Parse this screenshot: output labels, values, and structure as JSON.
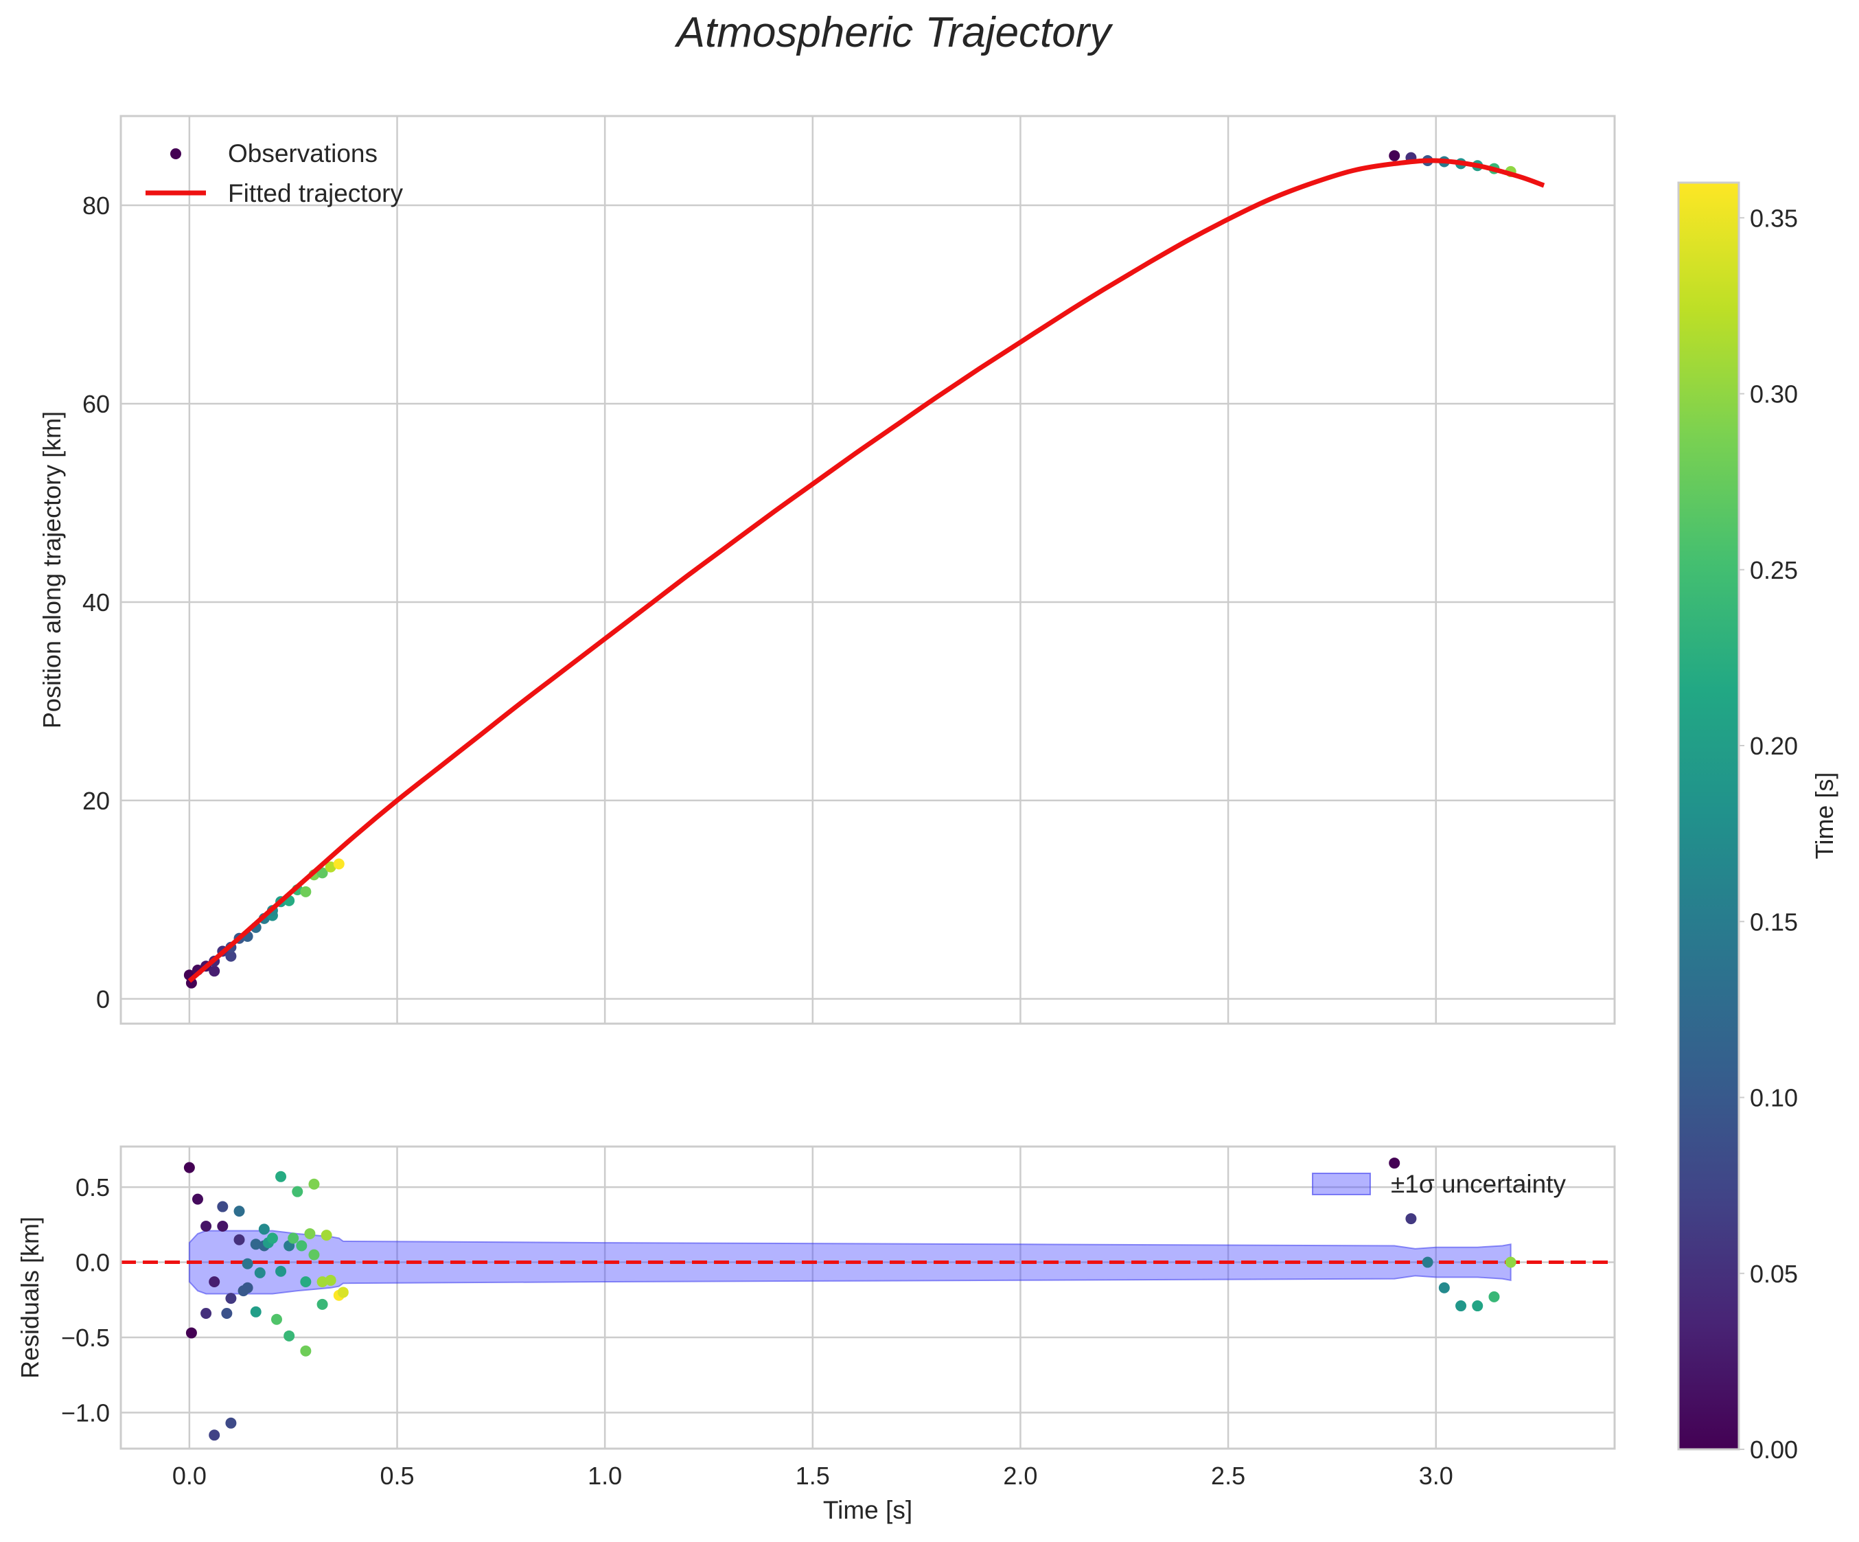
{
  "chart_data": {
    "type": "scatter",
    "title": "Atmospheric Trajectory",
    "top_panel": {
      "ylabel": "Position along trajectory [km]",
      "xlim": [
        -0.165,
        3.43
      ],
      "ylim": [
        -2.5,
        89.0
      ],
      "xticks": [
        0.0,
        0.5,
        1.0,
        1.5,
        2.0,
        2.5,
        3.0
      ],
      "yticks": [
        0,
        20,
        40,
        60,
        80
      ],
      "ytick_labels": [
        "0",
        "20",
        "40",
        "60",
        "80"
      ],
      "grid": true,
      "legend_position": "upper-left",
      "legend": {
        "observations": "Observations",
        "fit": "Fitted trajectory"
      },
      "fit_curve": {
        "label": "Fitted trajectory",
        "color": "#ee1111",
        "x": [
          0.0,
          0.1,
          0.2,
          0.3,
          0.4,
          0.5,
          0.6,
          0.7,
          0.8,
          0.9,
          1.0,
          1.1,
          1.2,
          1.3,
          1.4,
          1.5,
          1.6,
          1.7,
          1.8,
          1.9,
          2.0,
          2.1,
          2.2,
          2.3,
          2.4,
          2.5,
          2.6,
          2.7,
          2.8,
          2.9,
          3.0,
          3.1,
          3.2,
          3.26
        ],
        "y": [
          1.8,
          5.4,
          9.1,
          12.8,
          16.5,
          20.0,
          23.3,
          26.6,
          29.9,
          33.1,
          36.3,
          39.5,
          42.7,
          45.8,
          48.9,
          51.9,
          54.9,
          57.8,
          60.7,
          63.5,
          66.2,
          68.9,
          71.5,
          74.0,
          76.4,
          78.6,
          80.6,
          82.2,
          83.5,
          84.2,
          84.5,
          84.0,
          82.9,
          82.0
        ]
      },
      "observations": {
        "label": "Observations",
        "x": [
          0.0,
          0.005,
          0.02,
          0.04,
          0.06,
          0.06,
          0.08,
          0.1,
          0.1,
          0.12,
          0.14,
          0.16,
          0.18,
          0.2,
          0.2,
          0.22,
          0.24,
          0.26,
          0.28,
          0.3,
          0.32,
          0.34,
          0.36,
          2.9,
          2.94,
          2.98,
          3.02,
          3.06,
          3.1,
          3.14,
          3.18
        ],
        "y": [
          2.4,
          1.6,
          2.9,
          3.3,
          2.8,
          3.8,
          4.8,
          4.3,
          5.2,
          6.1,
          6.3,
          7.2,
          8.1,
          8.4,
          8.9,
          9.8,
          9.9,
          11.0,
          10.8,
          12.5,
          12.7,
          13.3,
          13.6,
          85.0,
          84.8,
          84.5,
          84.4,
          84.2,
          84.0,
          83.7,
          83.4
        ],
        "t": [
          0.0,
          0.0,
          0.01,
          0.02,
          0.03,
          0.04,
          0.05,
          0.07,
          0.08,
          0.1,
          0.11,
          0.13,
          0.15,
          0.18,
          0.17,
          0.2,
          0.22,
          0.24,
          0.28,
          0.29,
          0.27,
          0.32,
          0.36,
          0.0,
          0.05,
          0.1,
          0.15,
          0.18,
          0.2,
          0.24,
          0.3
        ]
      }
    },
    "bottom_panel": {
      "xlabel": "Time [s]",
      "ylabel": "Residuals [km]",
      "xlim": [
        -0.165,
        3.43
      ],
      "ylim": [
        -1.24,
        0.77
      ],
      "xticks": [
        0.0,
        0.5,
        1.0,
        1.5,
        2.0,
        2.5,
        3.0
      ],
      "xtick_labels": [
        "0.0",
        "0.5",
        "1.0",
        "1.5",
        "2.0",
        "2.5",
        "3.0"
      ],
      "yticks": [
        -1.0,
        -0.5,
        0.0,
        0.5
      ],
      "ytick_labels": [
        "−1.0",
        "−0.5",
        "0.0",
        "0.5"
      ],
      "grid": true,
      "legend_position": "upper-right",
      "legend": {
        "band": "±1σ uncertainty"
      },
      "zero_line": {
        "y": 0.0,
        "color": "#ee1111",
        "style": "dashed"
      },
      "uncertainty_band": {
        "label": "±1σ uncertainty",
        "color": "#4a4aff",
        "x": [
          0.0,
          0.02,
          0.04,
          0.1,
          0.2,
          0.26,
          0.34,
          0.36,
          0.37,
          1.0,
          2.0,
          2.9,
          2.95,
          3.0,
          3.1,
          3.16,
          3.18
        ],
        "upper": [
          0.13,
          0.19,
          0.21,
          0.21,
          0.21,
          0.19,
          0.17,
          0.16,
          0.14,
          0.13,
          0.12,
          0.11,
          0.09,
          0.1,
          0.1,
          0.11,
          0.12
        ],
        "lower": [
          -0.13,
          -0.19,
          -0.21,
          -0.21,
          -0.21,
          -0.19,
          -0.17,
          -0.16,
          -0.14,
          -0.13,
          -0.12,
          -0.11,
          -0.09,
          -0.1,
          -0.1,
          -0.11,
          -0.12
        ]
      },
      "residuals": {
        "x": [
          0.0,
          0.005,
          0.02,
          0.04,
          0.04,
          0.06,
          0.06,
          0.08,
          0.08,
          0.09,
          0.1,
          0.1,
          0.12,
          0.12,
          0.13,
          0.14,
          0.14,
          0.16,
          0.16,
          0.17,
          0.18,
          0.18,
          0.19,
          0.2,
          0.21,
          0.22,
          0.22,
          0.24,
          0.24,
          0.25,
          0.26,
          0.27,
          0.28,
          0.28,
          0.29,
          0.3,
          0.3,
          0.32,
          0.32,
          0.33,
          0.34,
          0.36,
          0.37,
          2.9,
          2.94,
          2.98,
          3.02,
          3.06,
          3.1,
          3.14,
          3.18
        ],
        "y": [
          0.63,
          -0.47,
          0.42,
          0.24,
          -0.34,
          -0.13,
          -1.15,
          0.37,
          0.24,
          -0.34,
          -0.24,
          -1.07,
          0.34,
          0.15,
          -0.19,
          -0.01,
          -0.17,
          0.12,
          -0.33,
          -0.07,
          0.22,
          0.11,
          0.13,
          0.16,
          -0.38,
          -0.06,
          0.57,
          0.11,
          -0.49,
          0.16,
          0.47,
          0.11,
          -0.59,
          -0.13,
          0.19,
          0.52,
          0.05,
          -0.28,
          -0.13,
          0.18,
          -0.12,
          -0.22,
          -0.2,
          0.66,
          0.29,
          0.0,
          -0.17,
          -0.29,
          -0.29,
          -0.23,
          0.0
        ],
        "t": [
          0.0,
          0.0,
          0.01,
          0.02,
          0.05,
          0.03,
          0.07,
          0.08,
          0.02,
          0.09,
          0.06,
          0.08,
          0.13,
          0.05,
          0.1,
          0.14,
          0.1,
          0.12,
          0.2,
          0.17,
          0.17,
          0.12,
          0.2,
          0.22,
          0.26,
          0.19,
          0.22,
          0.15,
          0.24,
          0.26,
          0.25,
          0.25,
          0.28,
          0.22,
          0.29,
          0.29,
          0.27,
          0.24,
          0.31,
          0.31,
          0.31,
          0.36,
          0.34,
          0.0,
          0.06,
          0.15,
          0.17,
          0.19,
          0.21,
          0.24,
          0.3
        ]
      }
    },
    "colorbar": {
      "label": "Time [s]",
      "colormap": "viridis",
      "range": [
        0.0,
        0.36
      ],
      "ticks": [
        0.0,
        0.05,
        0.1,
        0.15,
        0.2,
        0.25,
        0.3,
        0.35
      ],
      "tick_labels": [
        "0.00",
        "0.05",
        "0.10",
        "0.15",
        "0.20",
        "0.25",
        "0.30",
        "0.35"
      ]
    }
  }
}
